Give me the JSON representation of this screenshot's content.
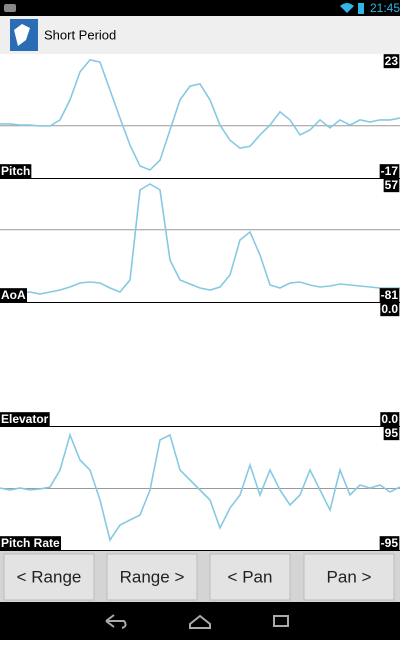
{
  "status_bar": {
    "time": "21:45"
  },
  "app_bar": {
    "title": "Short Period"
  },
  "chart_data": [
    {
      "type": "line",
      "label": "Pitch",
      "color": "#86c9e4",
      "ylim": [
        -17,
        23
      ],
      "hline": 0,
      "values": [
        0.6,
        0.6,
        0.2,
        0.2,
        -0.1,
        -0.1,
        1.9,
        8.4,
        17.5,
        21.4,
        20.7,
        11.6,
        2.5,
        -6.3,
        -13.1,
        -14.4,
        -11.2,
        -1.4,
        8.4,
        12.9,
        13.6,
        8.4,
        0.2,
        -4.7,
        -7.3,
        -6.7,
        -3.0,
        0.2,
        4.5,
        1.9,
        -3.0,
        -1.4,
        1.9,
        -0.7,
        1.9,
        0.2,
        1.9,
        1.2,
        1.9,
        1.9,
        2.5
      ]
    },
    {
      "type": "line",
      "label": "AoA",
      "color": "#86c9e4",
      "ylim": [
        -81,
        57
      ],
      "hline": 0,
      "values": [
        -69.8,
        -69.8,
        -70.9,
        -69.8,
        -72.0,
        -69.8,
        -67.5,
        -64.2,
        -59.7,
        -58.6,
        -59.7,
        -65.3,
        -69.8,
        -56.3,
        44.7,
        51.4,
        44.7,
        -33.9,
        -56.3,
        -60.8,
        -65.3,
        -67.5,
        -64.2,
        -50.7,
        -11.4,
        -2.5,
        -28.3,
        -61.9,
        -65.3,
        -59.7,
        -58.6,
        -61.9,
        -64.2,
        -63.0,
        -60.8,
        -61.9,
        -63.0,
        -64.2,
        -65.3,
        -65.3,
        -65.3
      ]
    },
    {
      "type": "line",
      "label": "Elevator",
      "color": "#86c9e4",
      "ylim": [
        {
          "value": 0,
          "label": "0.0"
        },
        {
          "value": 0,
          "label": "0.0"
        }
      ],
      "values": []
    },
    {
      "type": "line",
      "label": "Pitch Rate",
      "color": "#86c9e4",
      "ylim": [
        -95,
        95
      ],
      "hline": 0,
      "values": [
        0.8,
        -2.3,
        0.8,
        -2.3,
        -0.7,
        2.3,
        28.6,
        82.7,
        44.1,
        28.6,
        -17.8,
        -79.6,
        -56.4,
        -48.7,
        -40.9,
        -2.3,
        75.0,
        82.7,
        28.6,
        13.2,
        -2.3,
        -17.8,
        -61.0,
        -30.1,
        -10.1,
        36.3,
        -10.1,
        28.6,
        -2.3,
        -25.5,
        -10.1,
        28.6,
        -2.3,
        -33.2,
        28.6,
        -10.1,
        5.4,
        0.8,
        5.4,
        -5.4,
        2.3
      ]
    }
  ],
  "buttons": [
    "< Range",
    "Range >",
    "< Pan",
    "Pan >"
  ]
}
